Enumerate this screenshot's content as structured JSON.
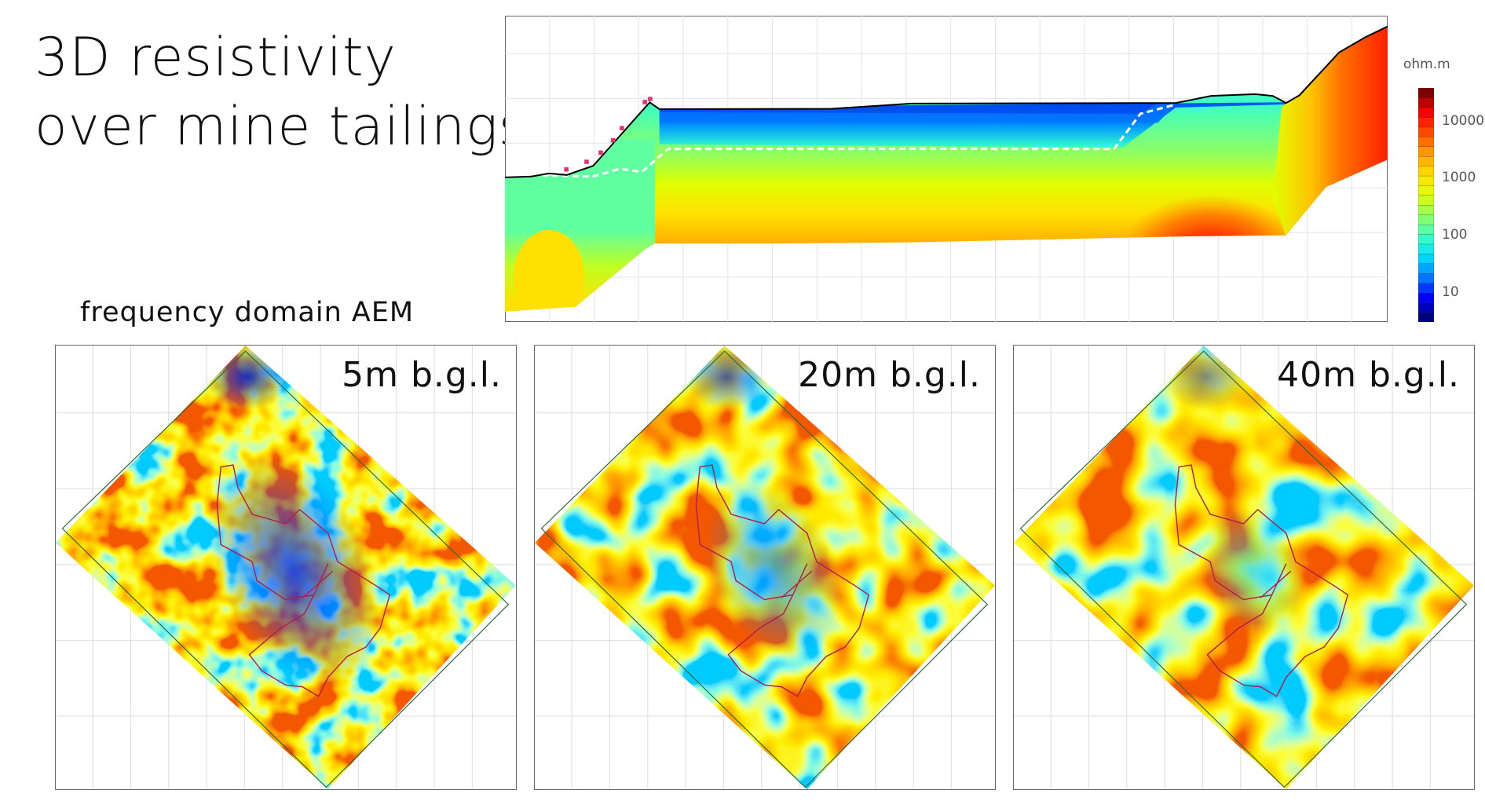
{
  "title": {
    "line1": "3D resistivity",
    "line2": "over mine tailings"
  },
  "subtitle": "frequency domain AEM",
  "chart_data": [
    {
      "type": "heatmap",
      "kind": "resistivity cross-section",
      "grid": true,
      "colorbar": {
        "unit": "ohm.m",
        "scale": "log",
        "ticks": [
          "10000",
          "1000",
          "100",
          "10"
        ],
        "colormap": [
          "#00007f",
          "#0000ff",
          "#0080ff",
          "#00e0ff",
          "#40ffc0",
          "#90ff60",
          "#e0ff00",
          "#ffe000",
          "#ffa000",
          "#ff5000",
          "#ff0000",
          "#7f0000"
        ]
      }
    },
    {
      "type": "heatmap",
      "kind": "depth slice map",
      "grid": true,
      "panels": [
        {
          "label": "5m b.g.l."
        },
        {
          "label": "20m b.g.l."
        },
        {
          "label": "40m b.g.l."
        }
      ]
    }
  ],
  "colors": {
    "contour": "#b0204a",
    "survey_outline": "#2f6b3a",
    "ground_line": "#000000"
  }
}
